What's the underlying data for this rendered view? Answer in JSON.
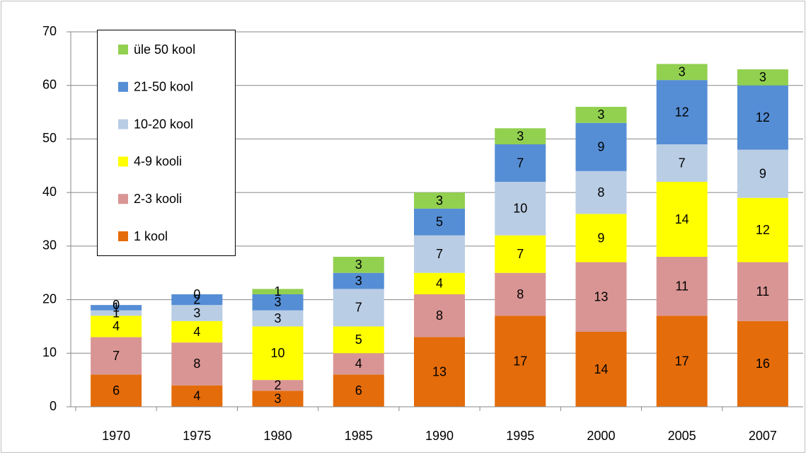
{
  "chart_data": {
    "type": "bar",
    "stacked": true,
    "categories": [
      "1970",
      "1975",
      "1980",
      "1985",
      "1990",
      "1995",
      "2000",
      "2005",
      "2007"
    ],
    "series": [
      {
        "name": "1 kool",
        "color": "#e46c0a",
        "values": [
          6,
          4,
          3,
          6,
          13,
          17,
          14,
          17,
          16
        ]
      },
      {
        "name": "2-3 kooli",
        "color": "#d99594",
        "values": [
          7,
          8,
          2,
          4,
          8,
          8,
          13,
          11,
          11
        ]
      },
      {
        "name": "4-9 kooli",
        "color": "#ffff00",
        "values": [
          4,
          4,
          10,
          5,
          4,
          7,
          9,
          14,
          12
        ]
      },
      {
        "name": "10-20 kool",
        "color": "#b9cde5",
        "values": [
          1,
          3,
          3,
          7,
          7,
          10,
          8,
          7,
          9
        ]
      },
      {
        "name": "21-50 kool",
        "color": "#558ed5",
        "values": [
          1,
          2,
          3,
          3,
          5,
          7,
          9,
          12,
          12
        ]
      },
      {
        "name": "üle 50 kool",
        "color": "#92d050",
        "values": [
          0,
          0,
          1,
          3,
          3,
          3,
          3,
          3,
          3
        ]
      }
    ],
    "ylim": [
      0,
      70
    ],
    "yticks": [
      0,
      10,
      20,
      30,
      40,
      50,
      60,
      70
    ],
    "grid": true,
    "legend": "top-left"
  }
}
